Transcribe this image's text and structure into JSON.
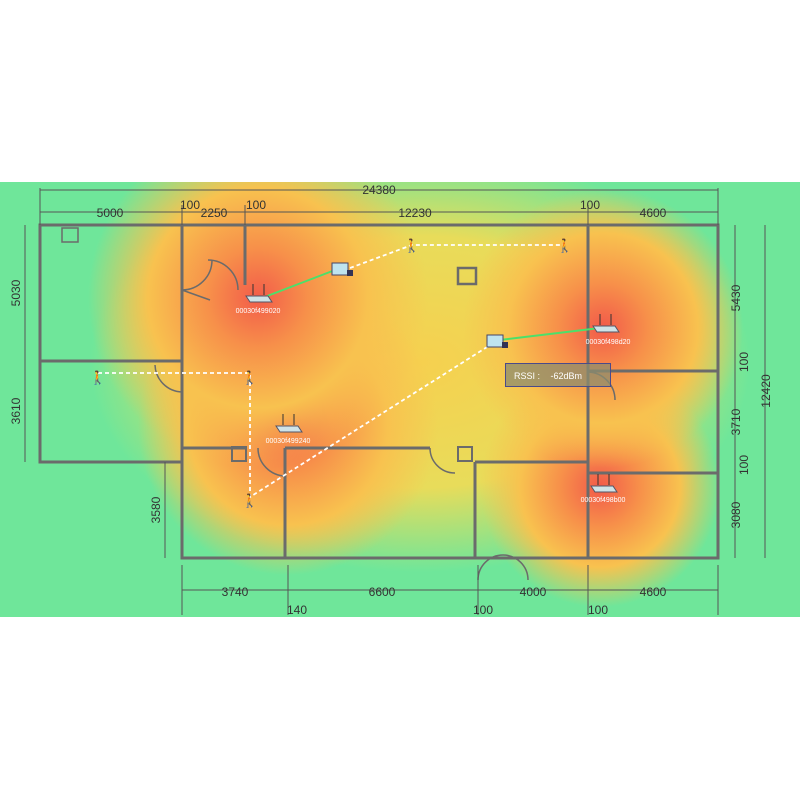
{
  "dimensions": {
    "top_total": "24380",
    "top": [
      "5000",
      "100",
      "2250",
      "100",
      "12230",
      "100",
      "4600"
    ],
    "left": [
      "5030",
      "3610",
      "3580"
    ],
    "right": [
      "5430",
      "100",
      "12420",
      "3710",
      "100",
      "3080"
    ],
    "bottom": [
      "3740",
      "140",
      "6600",
      "100",
      "4000",
      "100",
      "4600"
    ]
  },
  "access_points": [
    {
      "label": "00030f499020",
      "icon": "router-icon"
    },
    {
      "label": "00030f498d20",
      "icon": "router-icon"
    },
    {
      "label": "00030f499240",
      "icon": "router-icon"
    },
    {
      "label": "00030f498b00",
      "icon": "router-icon"
    }
  ],
  "tooltip": {
    "label": "RSSI :",
    "value": "-62dBm"
  },
  "colors": {
    "strong": "#f25a4a",
    "medium": "#f8c24f",
    "weak": "#6fe69a",
    "walls": "#6b6b6b",
    "connection": "#4be06a",
    "path": "#ffffff"
  }
}
